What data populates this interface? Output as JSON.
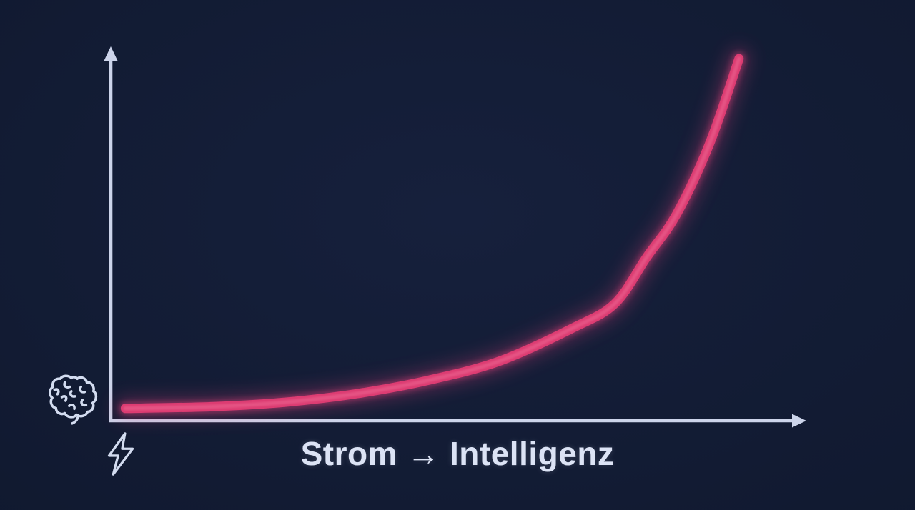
{
  "chart_data": {
    "type": "line",
    "style": "neon-glow-exponential",
    "title": "",
    "xlabel": "Strom → Intelligenz",
    "ylabel": "",
    "grid": false,
    "legend": false,
    "xlim": [
      0,
      1
    ],
    "ylim": [
      0,
      1
    ],
    "axes": {
      "arrows": true,
      "tick_labels": false
    },
    "y_axis_icon": "brain",
    "x_axis_icon": "lightning-bolt",
    "series": [
      {
        "name": "exponential-growth-curve",
        "color": "#dc3c72",
        "glow_color": "#e0417a",
        "highlight_color": "#ee6b95",
        "x": [
          0.021,
          0.149,
          0.253,
          0.356,
          0.459,
          0.562,
          0.665,
          0.727,
          0.773,
          0.816,
          0.864,
          0.906
        ],
        "y": [
          0.033,
          0.038,
          0.05,
          0.073,
          0.109,
          0.161,
          0.248,
          0.315,
          0.44,
          0.555,
          0.747,
          0.973
        ]
      }
    ]
  },
  "colors": {
    "background": "#111a31",
    "axis": "#ccd4ea",
    "text": "#dce3f5",
    "icons": "#d3dcf0"
  }
}
